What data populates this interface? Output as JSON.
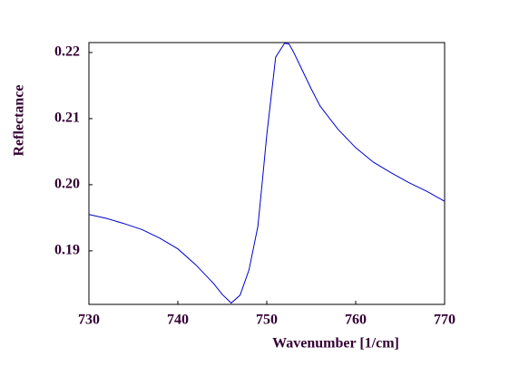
{
  "chart_data": {
    "type": "line",
    "x_label": "Wavenumber [1/cm]",
    "y_label": "Reflectance",
    "x": [
      730,
      732,
      734,
      736,
      738,
      740,
      742,
      744,
      745,
      746,
      747,
      748,
      749,
      749.5,
      750,
      751,
      752,
      752.5,
      753,
      754,
      755,
      756,
      758,
      760,
      762,
      764,
      766,
      768,
      770
    ],
    "series": [
      {
        "color": "#0000cc",
        "values": [
          0.1955,
          0.1949,
          0.1941,
          0.1932,
          0.1919,
          0.1903,
          0.1879,
          0.1851,
          0.1834,
          0.1821,
          0.1833,
          0.1871,
          0.1937,
          0.2005,
          0.2075,
          0.2193,
          0.2214,
          0.2213,
          0.2201,
          0.2173,
          0.2145,
          0.2119,
          0.2084,
          0.2056,
          0.2034,
          0.2018,
          0.2003,
          0.199,
          0.1975
        ]
      }
    ],
    "xlim": [
      730,
      770
    ],
    "xticks": [
      730,
      740,
      750,
      760,
      770
    ],
    "ylim": [
      0.1819,
      0.2215
    ],
    "yticks": [
      0.19,
      {
        "value": 0.2,
        "label": "0.20"
      },
      0.21,
      0.22
    ],
    "grid": false
  }
}
